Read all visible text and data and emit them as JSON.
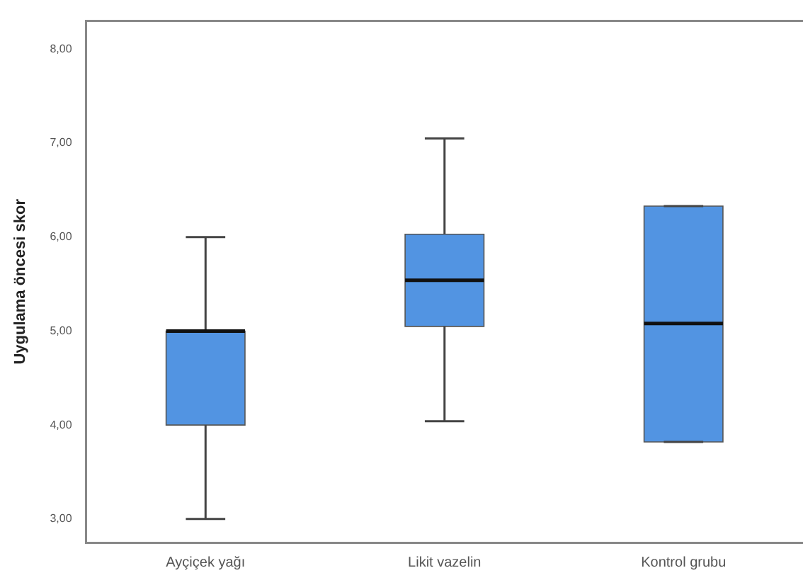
{
  "chart_data": {
    "type": "box",
    "ylabel": "Uygulama öncesi skor",
    "categories": [
      "Ayçiçek yağı",
      "Likit vazelin",
      "Kontrol grubu"
    ],
    "color": "#5294e2",
    "boxes": [
      {
        "low": 3.0,
        "q1": 4.0,
        "median": 5.0,
        "q3": 5.0,
        "high": 6.0
      },
      {
        "low": 4.04,
        "q1": 5.05,
        "median": 5.54,
        "q3": 6.03,
        "high": 7.05
      },
      {
        "low": 3.82,
        "q1": 3.82,
        "median": 5.08,
        "q3": 6.33,
        "high": 6.33
      }
    ],
    "ylim": [
      2.75,
      8.3
    ],
    "yticks": [
      {
        "value": 3,
        "label": "3,00"
      },
      {
        "value": 4,
        "label": "4,00"
      },
      {
        "value": 5,
        "label": "5,00"
      },
      {
        "value": 6,
        "label": "6,00"
      },
      {
        "value": 7,
        "label": "7,00"
      },
      {
        "value": 8,
        "label": "8,00"
      }
    ],
    "grid": false
  }
}
